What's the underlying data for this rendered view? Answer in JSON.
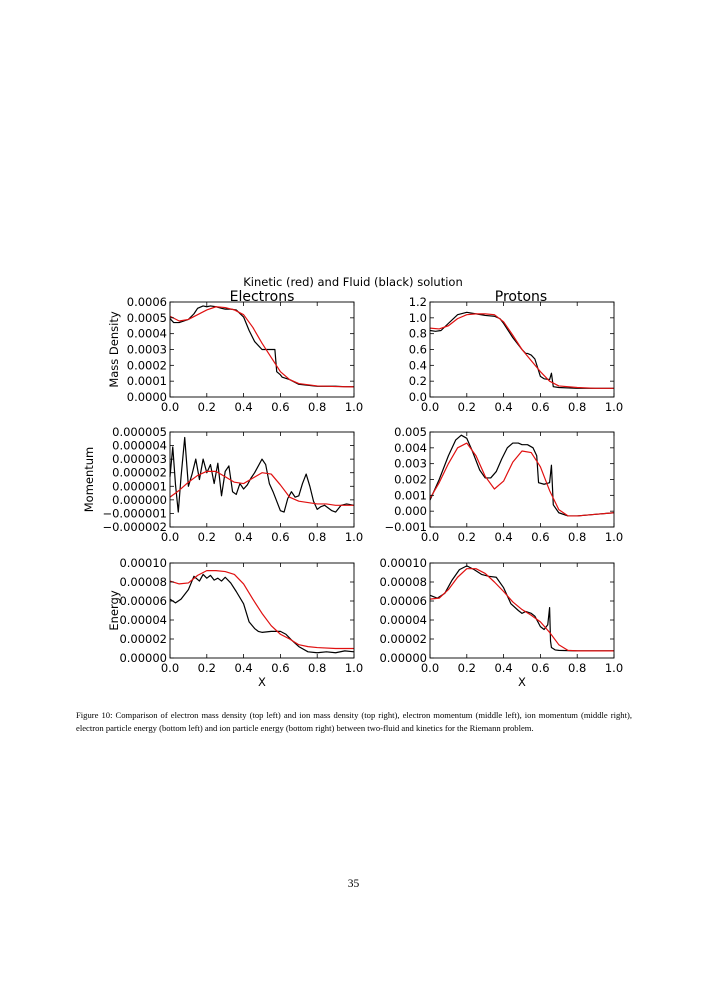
{
  "figure": {
    "suptitle": "Kinetic (red) and Fluid (black) solution",
    "column_titles": [
      "Electrons",
      "Protons"
    ],
    "series_colors": {
      "kinetic": "#e01010",
      "fluid": "#000000"
    }
  },
  "chart_data": [
    {
      "type": "line",
      "panel": "electron mass density",
      "ylabel": "Mass Density",
      "xlabel": "",
      "xlim": [
        0,
        1
      ],
      "ylim": [
        0,
        0.0006
      ],
      "xticks": [
        "0.0",
        "0.2",
        "0.4",
        "0.6",
        "0.8",
        "1.0"
      ],
      "yticks": [
        "0.0000",
        "0.0001",
        "0.0002",
        "0.0003",
        "0.0004",
        "0.0005",
        "0.0006"
      ],
      "series": [
        {
          "role": "fluid",
          "x": [
            0,
            0.02,
            0.05,
            0.1,
            0.13,
            0.15,
            0.18,
            0.2,
            0.22,
            0.25,
            0.28,
            0.3,
            0.33,
            0.36,
            0.4,
            0.43,
            0.46,
            0.5,
            0.53,
            0.57,
            0.58,
            0.6,
            0.61,
            0.65,
            0.7,
            0.8,
            0.9,
            0.95,
            1.0
          ],
          "y": [
            0.000495,
            0.00047,
            0.00047,
            0.00049,
            0.000525,
            0.00056,
            0.000575,
            0.00057,
            0.000575,
            0.00057,
            0.00056,
            0.000555,
            0.000555,
            0.00055,
            0.000505,
            0.00042,
            0.00035,
            0.0003,
            0.0003,
            0.0003,
            0.00016,
            0.00014,
            0.000125,
            0.00011,
            8e-05,
            6.8e-05,
            6.8e-05,
            6.5e-05,
            6.5e-05
          ]
        },
        {
          "role": "kinetic",
          "x": [
            0,
            0.05,
            0.1,
            0.15,
            0.2,
            0.25,
            0.3,
            0.35,
            0.4,
            0.45,
            0.5,
            0.55,
            0.6,
            0.65,
            0.7,
            0.8,
            0.9,
            1.0
          ],
          "y": [
            0.00051,
            0.00048,
            0.00049,
            0.00052,
            0.00055,
            0.00057,
            0.000565,
            0.00055,
            0.00052,
            0.00044,
            0.00034,
            0.00025,
            0.00016,
            0.00011,
            8.5e-05,
            7e-05,
            6.6e-05,
            6.4e-05
          ]
        }
      ]
    },
    {
      "type": "line",
      "panel": "ion mass density",
      "ylabel": "",
      "xlabel": "",
      "xlim": [
        0,
        1
      ],
      "ylim": [
        0,
        1.2
      ],
      "xticks": [
        "0.0",
        "0.2",
        "0.4",
        "0.6",
        "0.8",
        "1.0"
      ],
      "yticks": [
        "0.0",
        "0.2",
        "0.4",
        "0.6",
        "0.8",
        "1.0",
        "1.2"
      ],
      "series": [
        {
          "role": "fluid",
          "x": [
            0,
            0.03,
            0.06,
            0.1,
            0.15,
            0.2,
            0.25,
            0.3,
            0.35,
            0.38,
            0.4,
            0.45,
            0.5,
            0.52,
            0.53,
            0.55,
            0.57,
            0.6,
            0.62,
            0.65,
            0.66,
            0.67,
            0.7,
            0.8,
            0.9,
            1.0
          ],
          "y": [
            0.84,
            0.83,
            0.84,
            0.93,
            1.04,
            1.07,
            1.05,
            1.03,
            1.02,
            0.99,
            0.93,
            0.75,
            0.6,
            0.55,
            0.55,
            0.53,
            0.48,
            0.26,
            0.23,
            0.22,
            0.3,
            0.13,
            0.12,
            0.11,
            0.11,
            0.11
          ]
        },
        {
          "role": "kinetic",
          "x": [
            0,
            0.05,
            0.1,
            0.15,
            0.2,
            0.25,
            0.3,
            0.35,
            0.4,
            0.45,
            0.5,
            0.55,
            0.6,
            0.65,
            0.7,
            0.8,
            0.9,
            1.0
          ],
          "y": [
            0.87,
            0.86,
            0.9,
            0.99,
            1.04,
            1.05,
            1.05,
            1.04,
            0.95,
            0.78,
            0.6,
            0.46,
            0.32,
            0.2,
            0.14,
            0.12,
            0.11,
            0.11
          ]
        }
      ]
    },
    {
      "type": "line",
      "panel": "electron momentum",
      "ylabel": "Momentum",
      "xlabel": "",
      "xlim": [
        0,
        1
      ],
      "ylim": [
        -2e-06,
        5e-06
      ],
      "xticks": [
        "0.0",
        "0.2",
        "0.4",
        "0.6",
        "0.8",
        "1.0"
      ],
      "yticks": [
        "−0.000002",
        "−0.000001",
        "0.000000",
        "0.000001",
        "0.000002",
        "0.000003",
        "0.000004",
        "0.000005"
      ],
      "series": [
        {
          "role": "fluid",
          "x": [
            0,
            0.015,
            0.03,
            0.045,
            0.06,
            0.08,
            0.1,
            0.12,
            0.14,
            0.16,
            0.18,
            0.2,
            0.22,
            0.24,
            0.26,
            0.28,
            0.3,
            0.32,
            0.34,
            0.36,
            0.38,
            0.4,
            0.42,
            0.44,
            0.46,
            0.48,
            0.5,
            0.52,
            0.54,
            0.56,
            0.58,
            0.6,
            0.62,
            0.64,
            0.66,
            0.68,
            0.7,
            0.72,
            0.74,
            0.76,
            0.78,
            0.8,
            0.82,
            0.84,
            0.86,
            0.88,
            0.9,
            0.93,
            0.96,
            1.0
          ],
          "y": [
            1.7e-06,
            3.9e-06,
            1.1e-06,
            -9e-07,
            1.7e-06,
            4.6e-06,
            1e-06,
            1.9e-06,
            3e-06,
            1.5e-06,
            3e-06,
            2e-06,
            2.6e-06,
            1.2e-06,
            2.7e-06,
            3e-07,
            2.1e-06,
            2.5e-06,
            6e-07,
            4e-07,
            1.2e-06,
            8e-07,
            1.1e-06,
            1.6e-06,
            2e-06,
            2.5e-06,
            3e-06,
            2.6e-06,
            1.2e-06,
            6e-07,
            -1e-07,
            -8e-07,
            -9e-07,
            1e-07,
            6e-07,
            2e-07,
            3e-07,
            1.2e-06,
            1.9e-06,
            1e-06,
            -1e-07,
            -7e-07,
            -5e-07,
            -4e-07,
            -6e-07,
            -8e-07,
            -9e-07,
            -4e-07,
            -3e-07,
            -4e-07
          ]
        },
        {
          "role": "kinetic",
          "x": [
            0,
            0.05,
            0.1,
            0.15,
            0.2,
            0.25,
            0.3,
            0.35,
            0.4,
            0.45,
            0.5,
            0.55,
            0.6,
            0.65,
            0.7,
            0.75,
            0.8,
            0.85,
            0.9,
            1.0
          ],
          "y": [
            2e-07,
            7e-07,
            1.3e-06,
            1.8e-06,
            2.1e-06,
            2.1e-06,
            1.7e-06,
            1.3e-06,
            1.2e-06,
            1.6e-06,
            2e-06,
            1.9e-06,
            1.1e-06,
            2e-07,
            -1e-07,
            -2e-07,
            -3e-07,
            -3e-07,
            -4e-07,
            -4e-07
          ]
        }
      ]
    },
    {
      "type": "line",
      "panel": "ion momentum",
      "ylabel": "",
      "xlabel": "",
      "xlim": [
        0,
        1
      ],
      "ylim": [
        -0.001,
        0.005
      ],
      "xticks": [
        "0.0",
        "0.2",
        "0.4",
        "0.6",
        "0.8",
        "1.0"
      ],
      "yticks": [
        "−0.001",
        "0.000",
        "0.001",
        "0.002",
        "0.003",
        "0.004",
        "0.005"
      ],
      "series": [
        {
          "role": "fluid",
          "x": [
            0,
            0.05,
            0.1,
            0.14,
            0.17,
            0.2,
            0.23,
            0.27,
            0.3,
            0.33,
            0.36,
            0.39,
            0.42,
            0.45,
            0.48,
            0.5,
            0.53,
            0.56,
            0.58,
            0.59,
            0.62,
            0.65,
            0.66,
            0.67,
            0.7,
            0.75,
            0.8,
            0.9,
            1.0
          ],
          "y": [
            0.0007,
            0.002,
            0.0035,
            0.0045,
            0.0048,
            0.0046,
            0.0038,
            0.0026,
            0.0021,
            0.0021,
            0.0025,
            0.0033,
            0.004,
            0.0043,
            0.0043,
            0.0042,
            0.0042,
            0.004,
            0.0035,
            0.0018,
            0.0017,
            0.0018,
            0.0029,
            0.0004,
            -0.0001,
            -0.0003,
            -0.0003,
            -0.0002,
            -0.0001
          ]
        },
        {
          "role": "kinetic",
          "x": [
            0,
            0.05,
            0.1,
            0.15,
            0.2,
            0.25,
            0.3,
            0.35,
            0.4,
            0.45,
            0.5,
            0.55,
            0.6,
            0.65,
            0.7,
            0.75,
            0.8,
            0.9,
            1.0
          ],
          "y": [
            0.0008,
            0.0018,
            0.003,
            0.004,
            0.0043,
            0.0035,
            0.0022,
            0.0014,
            0.0019,
            0.0031,
            0.0038,
            0.0037,
            0.0028,
            0.0013,
            0.0001,
            -0.0003,
            -0.0003,
            -0.0002,
            -0.0001
          ]
        }
      ]
    },
    {
      "type": "line",
      "panel": "electron particle energy",
      "ylabel": "Energy",
      "xlabel": "X",
      "xlim": [
        0,
        1
      ],
      "ylim": [
        0,
        0.0001
      ],
      "xticks": [
        "0.0",
        "0.2",
        "0.4",
        "0.6",
        "0.8",
        "1.0"
      ],
      "yticks": [
        "0.00000",
        "0.00002",
        "0.00004",
        "0.00006",
        "0.00008",
        "0.00010"
      ],
      "series": [
        {
          "role": "fluid",
          "x": [
            0,
            0.03,
            0.06,
            0.1,
            0.13,
            0.16,
            0.18,
            0.2,
            0.22,
            0.24,
            0.26,
            0.28,
            0.3,
            0.33,
            0.36,
            0.4,
            0.43,
            0.46,
            0.48,
            0.5,
            0.55,
            0.6,
            0.63,
            0.66,
            0.7,
            0.75,
            0.8,
            0.85,
            0.9,
            0.95,
            1.0
          ],
          "y": [
            6.2e-05,
            5.8e-05,
            6.2e-05,
            7.2e-05,
            8.6e-05,
            8.1e-05,
            8.8e-05,
            8.4e-05,
            8.7e-05,
            8.2e-05,
            8.4e-05,
            8.1e-05,
            8.5e-05,
            7.9e-05,
            7e-05,
            5.7e-05,
            3.8e-05,
            3.1e-05,
            2.8e-05,
            2.7e-05,
            2.8e-05,
            2.8e-05,
            2.5e-05,
            1.9e-05,
            1.2e-05,
            6.5e-06,
            5.5e-06,
            6.5e-06,
            5.5e-06,
            7.5e-06,
            6.5e-06
          ]
        },
        {
          "role": "kinetic",
          "x": [
            0,
            0.05,
            0.1,
            0.15,
            0.2,
            0.25,
            0.3,
            0.35,
            0.4,
            0.45,
            0.5,
            0.55,
            0.6,
            0.65,
            0.7,
            0.75,
            0.8,
            0.9,
            1.0
          ],
          "y": [
            8.1e-05,
            7.8e-05,
            7.9e-05,
            8.7e-05,
            9.2e-05,
            9.2e-05,
            9.1e-05,
            8.8e-05,
            7.8e-05,
            6.2e-05,
            4.7e-05,
            3.4e-05,
            2.5e-05,
            2e-05,
            1.4e-05,
            1.2e-05,
            1.1e-05,
            1e-05,
            1e-05
          ]
        }
      ]
    },
    {
      "type": "line",
      "panel": "ion particle energy",
      "ylabel": "",
      "xlabel": "X",
      "xlim": [
        0,
        1
      ],
      "ylim": [
        0,
        0.0001
      ],
      "xticks": [
        "0.0",
        "0.2",
        "0.4",
        "0.6",
        "0.8",
        "1.0"
      ],
      "yticks": [
        "0.00000",
        "0.00002",
        "0.00004",
        "0.00006",
        "0.00008",
        "0.00010"
      ],
      "series": [
        {
          "role": "fluid",
          "x": [
            0,
            0.04,
            0.08,
            0.12,
            0.16,
            0.2,
            0.24,
            0.28,
            0.32,
            0.36,
            0.4,
            0.44,
            0.48,
            0.5,
            0.52,
            0.55,
            0.57,
            0.6,
            0.62,
            0.64,
            0.65,
            0.655,
            0.66,
            0.68,
            0.7,
            0.8,
            0.9,
            1.0
          ],
          "y": [
            6.6e-05,
            6.3e-05,
            6.8e-05,
            8.2e-05,
            9.3e-05,
            9.7e-05,
            9.3e-05,
            8.8e-05,
            8.6e-05,
            8.5e-05,
            7.4e-05,
            5.7e-05,
            5e-05,
            4.7e-05,
            4.9e-05,
            4.7e-05,
            4.4e-05,
            3.3e-05,
            3e-05,
            3.5e-05,
            5.3e-05,
            1.8e-05,
            1.1e-05,
            8.5e-06,
            8e-06,
            7.5e-06,
            7.5e-06,
            7.5e-06
          ]
        },
        {
          "role": "kinetic",
          "x": [
            0,
            0.05,
            0.1,
            0.15,
            0.2,
            0.25,
            0.3,
            0.35,
            0.4,
            0.45,
            0.5,
            0.55,
            0.6,
            0.65,
            0.7,
            0.75,
            0.8,
            0.9,
            1.0
          ],
          "y": [
            6.2e-05,
            6.3e-05,
            7.2e-05,
            8.5e-05,
            9.4e-05,
            9.4e-05,
            8.9e-05,
            8e-05,
            7e-05,
            5.9e-05,
            5.1e-05,
            4.5e-05,
            3.8e-05,
            2.7e-05,
            1.4e-05,
            8e-06,
            7.5e-06,
            7.5e-06,
            7.5e-06
          ]
        }
      ]
    }
  ],
  "caption": "Figure 10: Comparison of electron mass density (top left) and ion mass density (top right), electron momentum (middle left), ion momentum (middle right), electron particle energy (bottom left) and ion particle energy (bottom right) between two-fluid and kinetics for the Riemann problem.",
  "page_number": "35"
}
